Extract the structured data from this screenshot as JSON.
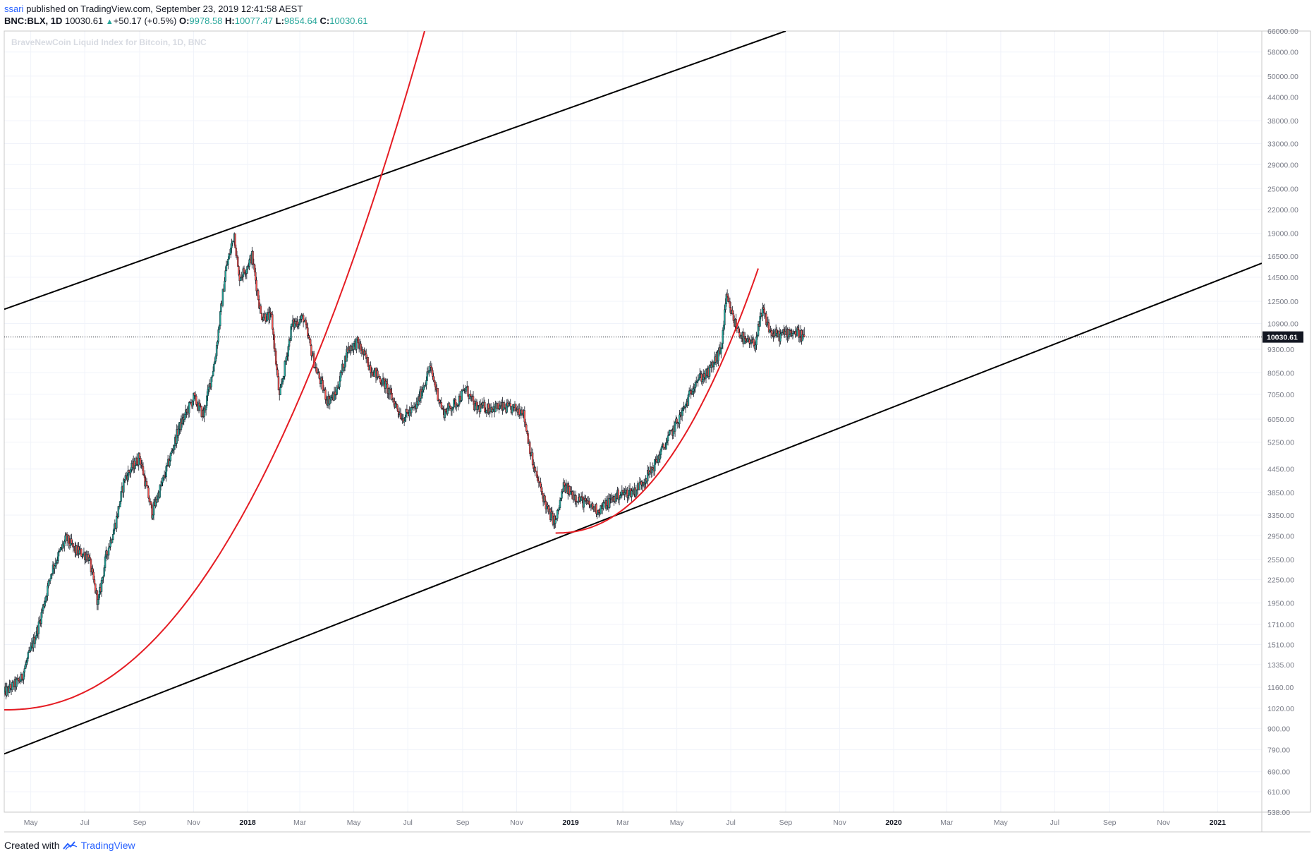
{
  "header": {
    "author": "ssari",
    "published_text": "published on TradingView.com, September 23, 2019 12:41:58 AEST",
    "symbol": "BNC:BLX, 1D",
    "last": "10030.61",
    "change": "+50.17 (+0.5%)",
    "open_label": "O:",
    "open": "9978.58",
    "high_label": "H:",
    "high": "10077.47",
    "low_label": "L:",
    "low": "9854.64",
    "close_label": "C:",
    "close": "10030.61"
  },
  "footer": {
    "created_with": "Created with",
    "brand": "TradingView"
  },
  "chart_data": {
    "type": "candlestick",
    "title": "BraveNewCoin Liquid Index for Bitcoin, 1D, BNC",
    "y_scale": "log",
    "y_range": [
      538,
      66000
    ],
    "x_range": [
      "2017-04-01",
      "2021-02-20"
    ],
    "grid": true,
    "last_price": 10030.61,
    "last_price_label": "10030.61",
    "y_ticks": [
      "66000.00",
      "58000.00",
      "50000.00",
      "44000.00",
      "38000.00",
      "33000.00",
      "29000.00",
      "25000.00",
      "22000.00",
      "19000.00",
      "16500.00",
      "14500.00",
      "12500.00",
      "10900.00",
      "9300.00",
      "8050.00",
      "7050.00",
      "6050.00",
      "5250.00",
      "4450.00",
      "3850.00",
      "3350.00",
      "2950.00",
      "2550.00",
      "2250.00",
      "1950.00",
      "1710.00",
      "1510.00",
      "1335.00",
      "1160.00",
      "1020.00",
      "900.00",
      "790.00",
      "690.00",
      "610.00",
      "538.00"
    ],
    "x_ticks": [
      {
        "label": "May",
        "date": "2017-05-01"
      },
      {
        "label": "Jul",
        "date": "2017-07-01"
      },
      {
        "label": "Sep",
        "date": "2017-09-01"
      },
      {
        "label": "Nov",
        "date": "2017-11-01"
      },
      {
        "label": "2018",
        "date": "2018-01-01",
        "bold": true
      },
      {
        "label": "Mar",
        "date": "2018-03-01"
      },
      {
        "label": "May",
        "date": "2018-05-01"
      },
      {
        "label": "Jul",
        "date": "2018-07-01"
      },
      {
        "label": "Sep",
        "date": "2018-09-01"
      },
      {
        "label": "Nov",
        "date": "2018-11-01"
      },
      {
        "label": "2019",
        "date": "2019-01-01",
        "bold": true
      },
      {
        "label": "Mar",
        "date": "2019-03-01"
      },
      {
        "label": "May",
        "date": "2019-05-01"
      },
      {
        "label": "Jul",
        "date": "2019-07-01"
      },
      {
        "label": "Sep",
        "date": "2019-09-01"
      },
      {
        "label": "Nov",
        "date": "2019-11-01"
      },
      {
        "label": "2020",
        "date": "2020-01-01",
        "bold": true
      },
      {
        "label": "Mar",
        "date": "2020-03-01"
      },
      {
        "label": "May",
        "date": "2020-05-01"
      },
      {
        "label": "Jul",
        "date": "2020-07-01"
      },
      {
        "label": "Sep",
        "date": "2020-09-01"
      },
      {
        "label": "Nov",
        "date": "2020-11-01"
      },
      {
        "label": "2021",
        "date": "2021-01-01",
        "bold": true
      }
    ],
    "price_path": [
      [
        "2017-04-01",
        1120
      ],
      [
        "2017-04-20",
        1220
      ],
      [
        "2017-05-10",
        1700
      ],
      [
        "2017-05-25",
        2400
      ],
      [
        "2017-06-10",
        2900
      ],
      [
        "2017-06-20",
        2700
      ],
      [
        "2017-07-05",
        2600
      ],
      [
        "2017-07-16",
        1950
      ],
      [
        "2017-07-25",
        2600
      ],
      [
        "2017-08-05",
        3200
      ],
      [
        "2017-08-15",
        4200
      ],
      [
        "2017-09-01",
        4800
      ],
      [
        "2017-09-15",
        3400
      ],
      [
        "2017-10-01",
        4400
      ],
      [
        "2017-10-15",
        5700
      ],
      [
        "2017-11-01",
        6900
      ],
      [
        "2017-11-12",
        6200
      ],
      [
        "2017-11-25",
        8700
      ],
      [
        "2017-12-07",
        15000
      ],
      [
        "2017-12-17",
        19000
      ],
      [
        "2017-12-22",
        14500
      ],
      [
        "2017-12-28",
        15000
      ],
      [
        "2018-01-06",
        16500
      ],
      [
        "2018-01-16",
        11500
      ],
      [
        "2018-01-28",
        11300
      ],
      [
        "2018-02-06",
        6900
      ],
      [
        "2018-02-20",
        10800
      ],
      [
        "2018-03-05",
        11300
      ],
      [
        "2018-03-18",
        8400
      ],
      [
        "2018-04-01",
        6800
      ],
      [
        "2018-04-10",
        7000
      ],
      [
        "2018-04-24",
        9300
      ],
      [
        "2018-05-05",
        9700
      ],
      [
        "2018-05-20",
        8300
      ],
      [
        "2018-06-05",
        7500
      ],
      [
        "2018-06-25",
        6100
      ],
      [
        "2018-07-10",
        6500
      ],
      [
        "2018-07-26",
        8300
      ],
      [
        "2018-08-10",
        6300
      ],
      [
        "2018-08-25",
        6700
      ],
      [
        "2018-09-05",
        7300
      ],
      [
        "2018-09-15",
        6500
      ],
      [
        "2018-10-15",
        6500
      ],
      [
        "2018-11-08",
        6400
      ],
      [
        "2018-11-20",
        4500
      ],
      [
        "2018-12-07",
        3400
      ],
      [
        "2018-12-15",
        3200
      ],
      [
        "2018-12-24",
        4000
      ],
      [
        "2019-01-10",
        3700
      ],
      [
        "2019-02-01",
        3450
      ],
      [
        "2019-02-24",
        3800
      ],
      [
        "2019-03-15",
        3900
      ],
      [
        "2019-04-02",
        4400
      ],
      [
        "2019-04-20",
        5300
      ],
      [
        "2019-05-10",
        6500
      ],
      [
        "2019-05-22",
        7700
      ],
      [
        "2019-06-05",
        8000
      ],
      [
        "2019-06-20",
        9300
      ],
      [
        "2019-06-26",
        12800
      ],
      [
        "2019-07-05",
        11000
      ],
      [
        "2019-07-17",
        9700
      ],
      [
        "2019-07-28",
        9600
      ],
      [
        "2019-08-06",
        11800
      ],
      [
        "2019-08-15",
        10300
      ],
      [
        "2019-08-25",
        10100
      ],
      [
        "2019-09-05",
        10400
      ],
      [
        "2019-09-15",
        10300
      ],
      [
        "2019-09-22",
        10030.61
      ]
    ],
    "annotations": [
      {
        "kind": "trend_line",
        "color": "#000000",
        "from": [
          "2017-04-01",
          11900
        ],
        "to": [
          "2019-09-01",
          66000
        ]
      },
      {
        "kind": "trend_line",
        "color": "#000000",
        "from": [
          "2017-04-01",
          770
        ],
        "to": [
          "2021-02-20",
          15800
        ]
      },
      {
        "kind": "parabolic_curve",
        "color": "#e51c23",
        "from": [
          "2017-04-01",
          1010
        ],
        "to": [
          "2018-07-20",
          66000
        ]
      },
      {
        "kind": "parabolic_curve",
        "color": "#e51c23",
        "from": [
          "2018-12-15",
          3000
        ],
        "to": [
          "2019-08-01",
          15300
        ]
      }
    ]
  }
}
